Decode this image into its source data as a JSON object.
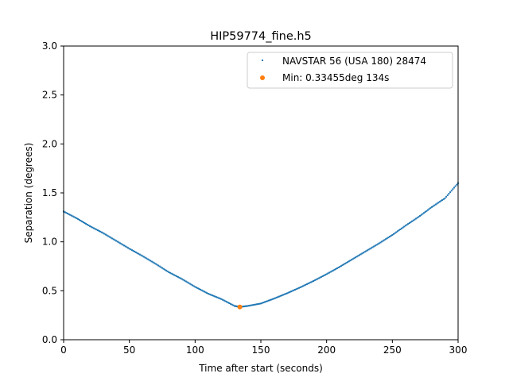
{
  "chart_data": {
    "type": "scatter",
    "title": "HIP59774_fine.h5",
    "xlabel": "Time after start (seconds)",
    "ylabel": "Separation (degrees)",
    "xlim": [
      0,
      300
    ],
    "ylim": [
      0,
      3.0
    ],
    "x_ticks": [
      0,
      50,
      100,
      150,
      200,
      250,
      300
    ],
    "x_tick_labels": [
      "0",
      "50",
      "100",
      "150",
      "200",
      "250",
      "300"
    ],
    "y_ticks": [
      0.0,
      0.5,
      1.0,
      1.5,
      2.0,
      2.5,
      3.0
    ],
    "y_tick_labels": [
      "0.0",
      "0.5",
      "1.0",
      "1.5",
      "2.0",
      "2.5",
      "3.0"
    ],
    "grid": false,
    "legend_position": "top-right",
    "series": [
      {
        "name": "NAVSTAR 56 (USA 180) 28474",
        "color": "#1f77b4",
        "marker": "point",
        "x": [
          0,
          10,
          20,
          30,
          40,
          50,
          60,
          70,
          80,
          90,
          100,
          110,
          120,
          130,
          134,
          140,
          150,
          160,
          170,
          180,
          190,
          200,
          210,
          220,
          230,
          240,
          250,
          260,
          270,
          280,
          290,
          300
        ],
        "y": [
          1.31,
          1.24,
          1.16,
          1.09,
          1.01,
          0.93,
          0.855,
          0.775,
          0.69,
          0.62,
          0.54,
          0.47,
          0.415,
          0.345,
          0.335,
          0.345,
          0.37,
          0.42,
          0.475,
          0.535,
          0.6,
          0.67,
          0.745,
          0.825,
          0.905,
          0.985,
          1.07,
          1.165,
          1.255,
          1.355,
          1.445,
          1.6
        ]
      },
      {
        "name": "Min: 0.33455deg 134s",
        "color": "#ff7f0e",
        "marker": "circle",
        "x": [
          134
        ],
        "y": [
          0.33455
        ]
      }
    ]
  }
}
